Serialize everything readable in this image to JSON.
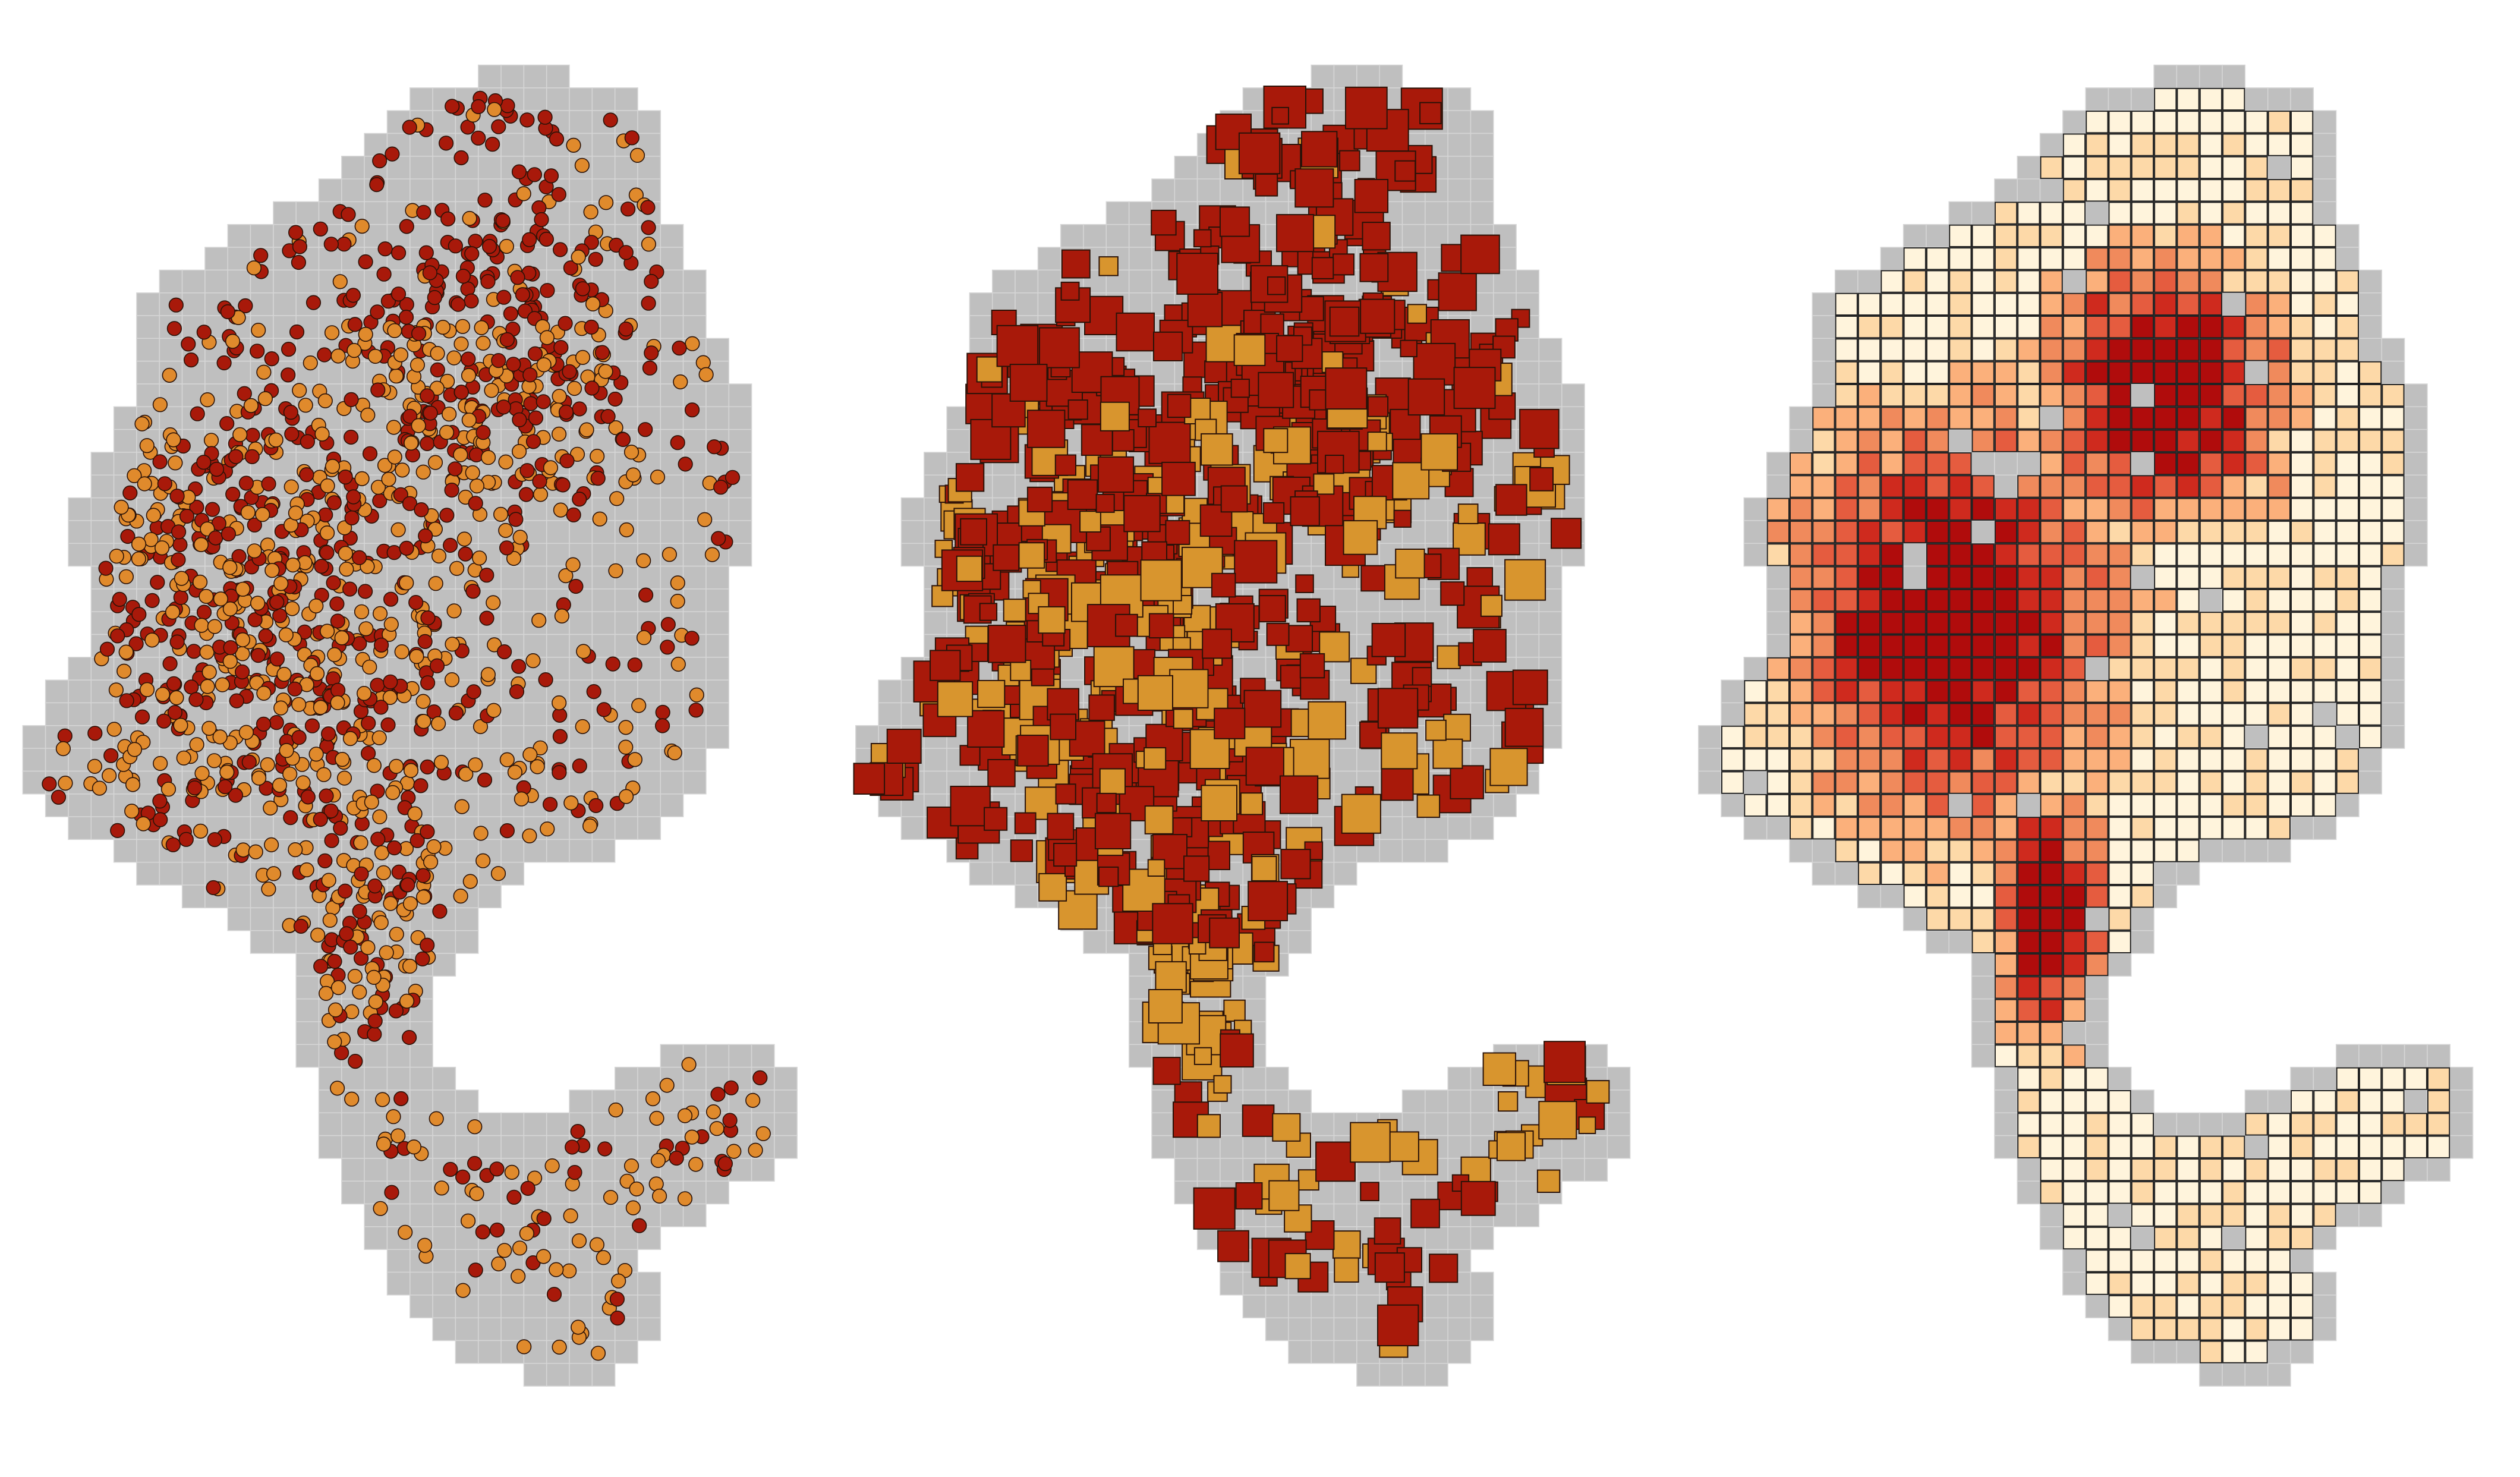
{
  "colors": {
    "background": "#ffffff",
    "grid_fill": "#bfbfbf",
    "grid_line": "#d6d6d6",
    "category_a": "#a8190a",
    "category_b": "#e08a2c",
    "category_b_square": "#d8952e",
    "mark_outline": "#2a1208",
    "cell_outline": "#222222",
    "density_ramp": [
      "#fff4dc",
      "#fdd9a8",
      "#fbb07b",
      "#f08a5c",
      "#e55c3f",
      "#cf2a1e",
      "#b00c0c"
    ]
  },
  "chart_data": [
    {
      "type": "scatter",
      "panel": "points",
      "title": "",
      "xlabel": "",
      "ylabel": "",
      "legend": "none",
      "grid": true,
      "marker": "circle",
      "series": [
        {
          "category": "a",
          "color": "#a8190a"
        },
        {
          "category": "b",
          "color": "#e08a2c"
        }
      ]
    },
    {
      "type": "scatter",
      "panel": "squares",
      "title": "",
      "xlabel": "",
      "ylabel": "",
      "legend": "none",
      "grid": true,
      "marker": "square",
      "series": [
        {
          "category": "a",
          "color": "#a8190a"
        },
        {
          "category": "b",
          "color": "#d8952e"
        }
      ]
    },
    {
      "type": "heatmap",
      "panel": "binned",
      "title": "",
      "xlabel": "",
      "ylabel": "",
      "legend": "none",
      "grid": true,
      "color_levels": 7,
      "value_range": [
        0,
        1
      ]
    }
  ]
}
